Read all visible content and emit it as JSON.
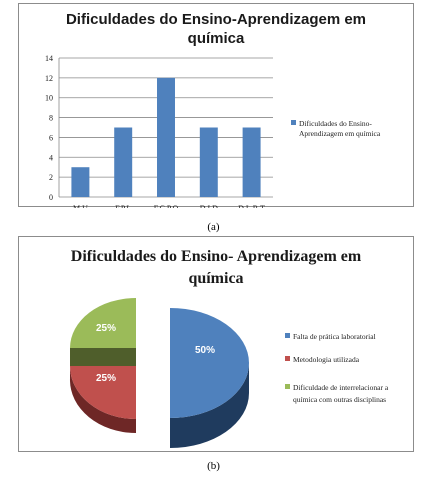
{
  "chart_data": [
    {
      "type": "bar",
      "title": "Dificuldades do Ensino-Aprendizagem em química",
      "categories": [
        "M.U",
        "F.P.L",
        "F.C.P.Q",
        "D.I.D",
        "D.L.R.T"
      ],
      "series": [
        {
          "name": "Dificuldades do Ensino-Aprendizagem em química",
          "values": [
            3,
            7,
            12,
            7,
            7
          ],
          "color": "#4f81bd"
        }
      ],
      "ylim": [
        0,
        14
      ],
      "yticks": [
        0,
        2,
        4,
        6,
        8,
        10,
        12,
        14
      ],
      "grid": true,
      "legend": "right",
      "legend_lines": [
        "Dificuldades do Ensino-",
        "Aprendizagem em química"
      ],
      "caption": "(a)"
    },
    {
      "type": "pie",
      "title": "Dificuldades do Ensino- Aprendizagem em química",
      "labels": [
        "Falta de prática laboratorial",
        "Metodologia utilizada",
        "Dificuldade de interrelacionar a química com outras disciplinas"
      ],
      "values": [
        50,
        25,
        25
      ],
      "data_labels": [
        "50%",
        "25%",
        "25%"
      ],
      "colors": [
        "#4f81bd",
        "#c0504d",
        "#9bbb59"
      ],
      "legend": "right",
      "legend_lines": [
        [
          "Falta de prática laboratorial"
        ],
        [
          "Metodologia utilizada"
        ],
        [
          "Dificuldade de interrelacionar a",
          "química com outras disciplinas"
        ]
      ],
      "caption": "(b)"
    }
  ]
}
